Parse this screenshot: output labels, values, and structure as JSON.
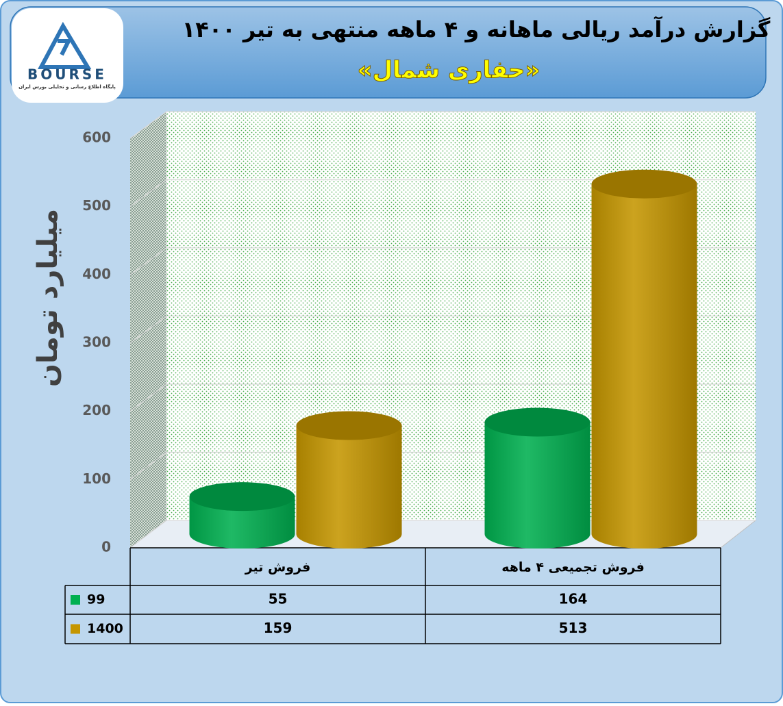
{
  "logo": {
    "text": "BOURSE",
    "caption": "پایگاه اطلاع رسانی و تحلیلی بورس ایران"
  },
  "chart_data": {
    "type": "bar",
    "title": "گزارش درآمد ریالی ماهانه و ۴ ماهه منتهی به تیر ۱۴۰۰",
    "subtitle": "«حفاری شمال»",
    "y_label": "میلیارد تومان",
    "categories": [
      "فروش تیر",
      "فروش تجمیعی ۴ ماهه"
    ],
    "series": [
      {
        "name": "99",
        "color": "#00b050",
        "values": [
          55,
          164
        ]
      },
      {
        "name": "1400",
        "color": "#c59600",
        "values": [
          159,
          513
        ]
      }
    ],
    "ylim": [
      0,
      600
    ],
    "yticks": [
      0,
      100,
      200,
      300,
      400,
      500,
      600
    ],
    "grid": true
  }
}
